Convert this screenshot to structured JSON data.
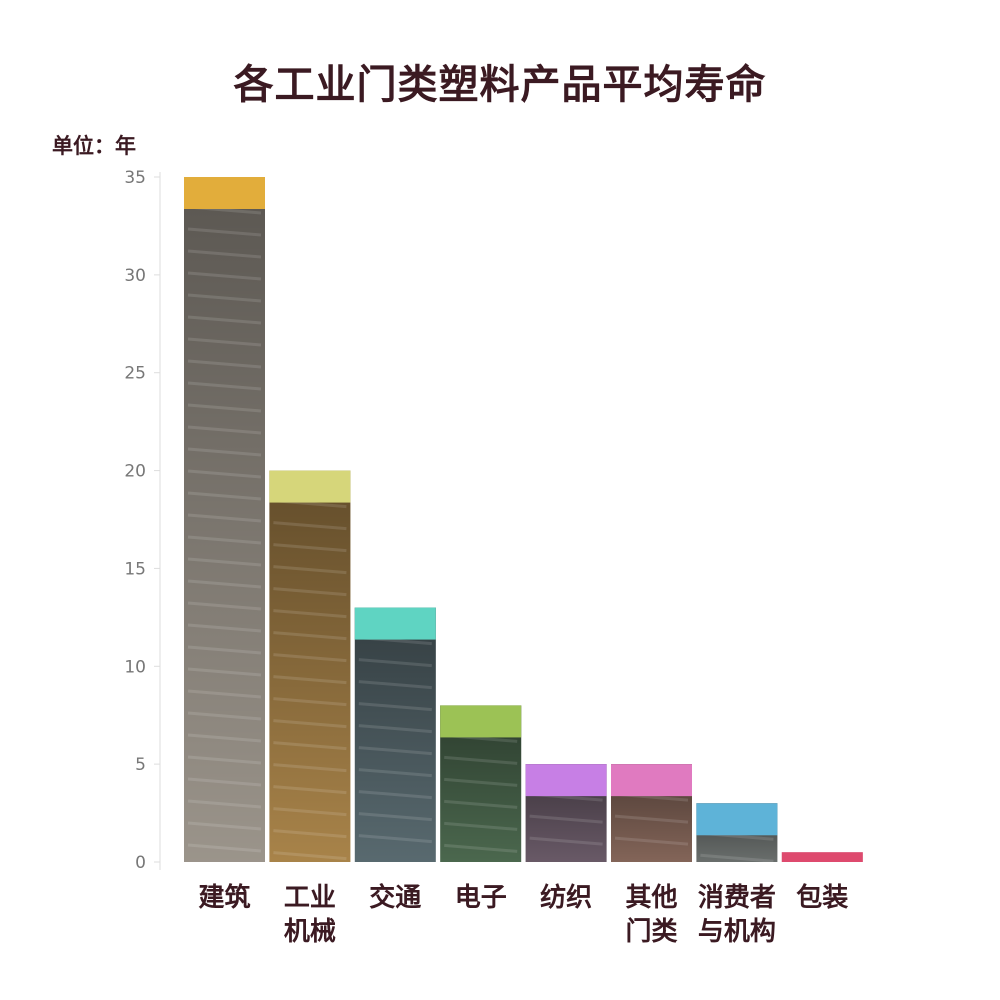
{
  "chart_data": {
    "type": "bar",
    "title": "各工业门类塑料产品平均寿命",
    "unit_label": "单位：年",
    "ylim": [
      0,
      35
    ],
    "yticks": [
      0,
      5,
      10,
      15,
      20,
      25,
      30,
      35
    ],
    "grid": false,
    "categories": [
      "建筑",
      "工业机械",
      "交通",
      "电子",
      "纺织",
      "其他门类",
      "消费者与机构",
      "包装"
    ],
    "category_lines": [
      [
        "建筑"
      ],
      [
        "工业",
        "机械"
      ],
      [
        "交通"
      ],
      [
        "电子"
      ],
      [
        "纺织"
      ],
      [
        "其他",
        "门类"
      ],
      [
        "消费者",
        "与机构"
      ],
      [
        "包装"
      ]
    ],
    "values": [
      35,
      20,
      13,
      8,
      5,
      5,
      3,
      0.5
    ],
    "colors": [
      "#e2ad3b",
      "#d6d67a",
      "#5fd4c2",
      "#9cc255",
      "#c77fe5",
      "#e07ac0",
      "#5eb3d8",
      "#de4a6e"
    ]
  }
}
